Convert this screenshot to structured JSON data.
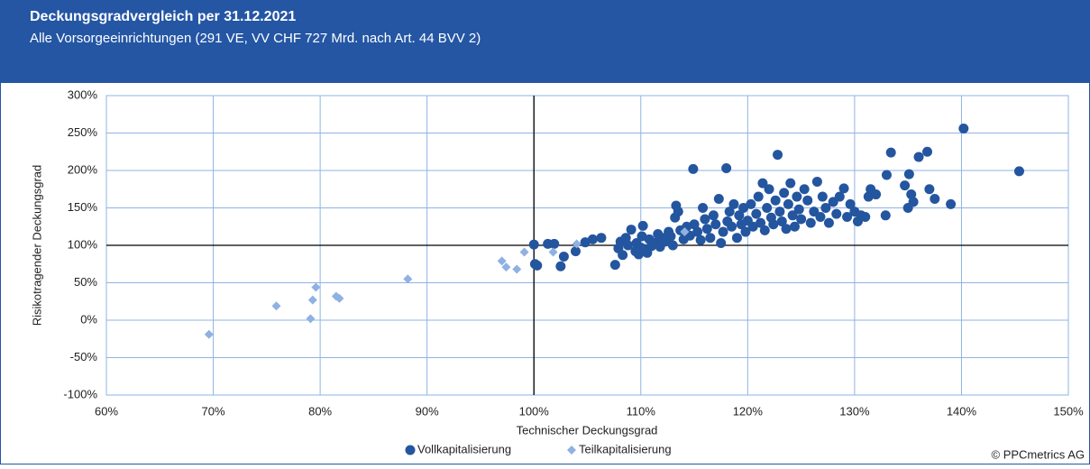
{
  "header": {
    "title": "Deckungsgradvergleich per 31.12.2021",
    "subtitle": "Alle Vorsorgeeinrichtungen (291 VE, VV CHF 727 Mrd. nach Art. 44 BVV 2)"
  },
  "chart_data": {
    "type": "scatter",
    "x_label": "Technischer Deckungsgrad",
    "y_label": "Risikotragender Deckungsgrad",
    "xlim": [
      60,
      150
    ],
    "ylim": [
      -100,
      300
    ],
    "xticks": [
      {
        "value": 60,
        "label": "60%"
      },
      {
        "value": 70,
        "label": "70%"
      },
      {
        "value": 80,
        "label": "80%"
      },
      {
        "value": 90,
        "label": "90%"
      },
      {
        "value": 100,
        "label": "100%"
      },
      {
        "value": 110,
        "label": "110%"
      },
      {
        "value": 120,
        "label": "120%"
      },
      {
        "value": 130,
        "label": "130%"
      },
      {
        "value": 140,
        "label": "140%"
      },
      {
        "value": 150,
        "label": "150%"
      }
    ],
    "yticks": [
      {
        "value": -100,
        "label": "-100%"
      },
      {
        "value": -50,
        "label": "-50%"
      },
      {
        "value": 0,
        "label": "0%"
      },
      {
        "value": 50,
        "label": "50%"
      },
      {
        "value": 100,
        "label": "100%"
      },
      {
        "value": 150,
        "label": "150%"
      },
      {
        "value": 200,
        "label": "200%"
      },
      {
        "value": 250,
        "label": "250%"
      },
      {
        "value": 300,
        "label": "300%"
      }
    ],
    "grid": true,
    "grid_color": "#8fb4e3",
    "reference_lines": {
      "x": 100,
      "y": 100
    },
    "series": [
      {
        "name": "Vollkapitalisierung",
        "color": "#24559f",
        "marker": "circle",
        "x": [
          100.0,
          100.1,
          100.3,
          101.3,
          101.9,
          102.5,
          102.8,
          103.9,
          104.8,
          105.5,
          106.3,
          107.6,
          107.9,
          108.1,
          108.3,
          108.6,
          108.8,
          109.1,
          109.5,
          109.6,
          109.8,
          110.0,
          110.1,
          110.2,
          110.4,
          110.6,
          110.8,
          111.0,
          111.3,
          111.6,
          111.8,
          112.0,
          112.3,
          112.6,
          112.8,
          113.0,
          113.2,
          113.3,
          113.5,
          113.7,
          114.0,
          114.3,
          114.6,
          114.9,
          115.0,
          115.3,
          115.6,
          115.8,
          116.0,
          116.2,
          116.5,
          116.8,
          117.0,
          117.3,
          117.5,
          117.7,
          118.0,
          118.1,
          118.3,
          118.5,
          118.7,
          119.0,
          119.2,
          119.4,
          119.6,
          119.8,
          120.0,
          120.3,
          120.5,
          120.8,
          121.0,
          121.2,
          121.4,
          121.6,
          121.8,
          122.0,
          122.2,
          122.4,
          122.6,
          122.8,
          123.0,
          123.2,
          123.4,
          123.6,
          123.8,
          124.0,
          124.2,
          124.4,
          124.6,
          124.8,
          125.0,
          125.3,
          125.6,
          125.9,
          126.2,
          126.5,
          126.8,
          127.0,
          127.3,
          127.6,
          128.0,
          128.3,
          128.6,
          129.0,
          129.3,
          129.6,
          130.0,
          130.3,
          130.6,
          131.0,
          131.3,
          131.5,
          132.0,
          132.9,
          133.0,
          133.4,
          134.7,
          135.0,
          135.1,
          135.3,
          135.5,
          136.0,
          136.8,
          137.0,
          137.5,
          139.0,
          140.2,
          145.4
        ],
        "values": [
          101,
          75,
          73,
          102,
          102,
          72,
          85,
          92,
          104,
          108,
          110,
          74,
          96,
          105,
          87,
          110,
          100,
          121,
          92,
          103,
          88,
          97,
          112,
          126,
          95,
          90,
          108,
          99,
          103,
          115,
          98,
          110,
          105,
          118,
          112,
          100,
          137,
          153,
          145,
          120,
          108,
          125,
          113,
          202,
          128,
          118,
          107,
          150,
          135,
          122,
          110,
          140,
          128,
          162,
          103,
          118,
          203,
          132,
          145,
          125,
          155,
          110,
          140,
          128,
          150,
          118,
          133,
          155,
          125,
          142,
          165,
          130,
          183,
          120,
          150,
          175,
          137,
          128,
          160,
          221,
          145,
          132,
          170,
          122,
          155,
          183,
          140,
          125,
          165,
          148,
          135,
          175,
          160,
          130,
          145,
          185,
          138,
          165,
          150,
          130,
          158,
          142,
          165,
          176,
          138,
          155,
          145,
          132,
          140,
          138,
          165,
          175,
          168,
          140,
          194,
          224,
          180,
          150,
          195,
          168,
          158,
          218,
          225,
          175,
          162,
          155,
          256,
          199
        ]
      },
      {
        "name": "Teilkapitalisierung",
        "color": "#8fb1e3",
        "marker": "diamond",
        "x": [
          69.6,
          75.9,
          79.6,
          79.3,
          79.1,
          81.5,
          81.8,
          88.2,
          97.0,
          97.4,
          98.4,
          99.1,
          101.8,
          104.0,
          114.1
        ],
        "values": [
          -19,
          19,
          44,
          27,
          2,
          32,
          29,
          55,
          79,
          71,
          68,
          91,
          91,
          102,
          118
        ]
      }
    ]
  },
  "footer": {
    "copyright": "© PPCmetrics AG"
  }
}
